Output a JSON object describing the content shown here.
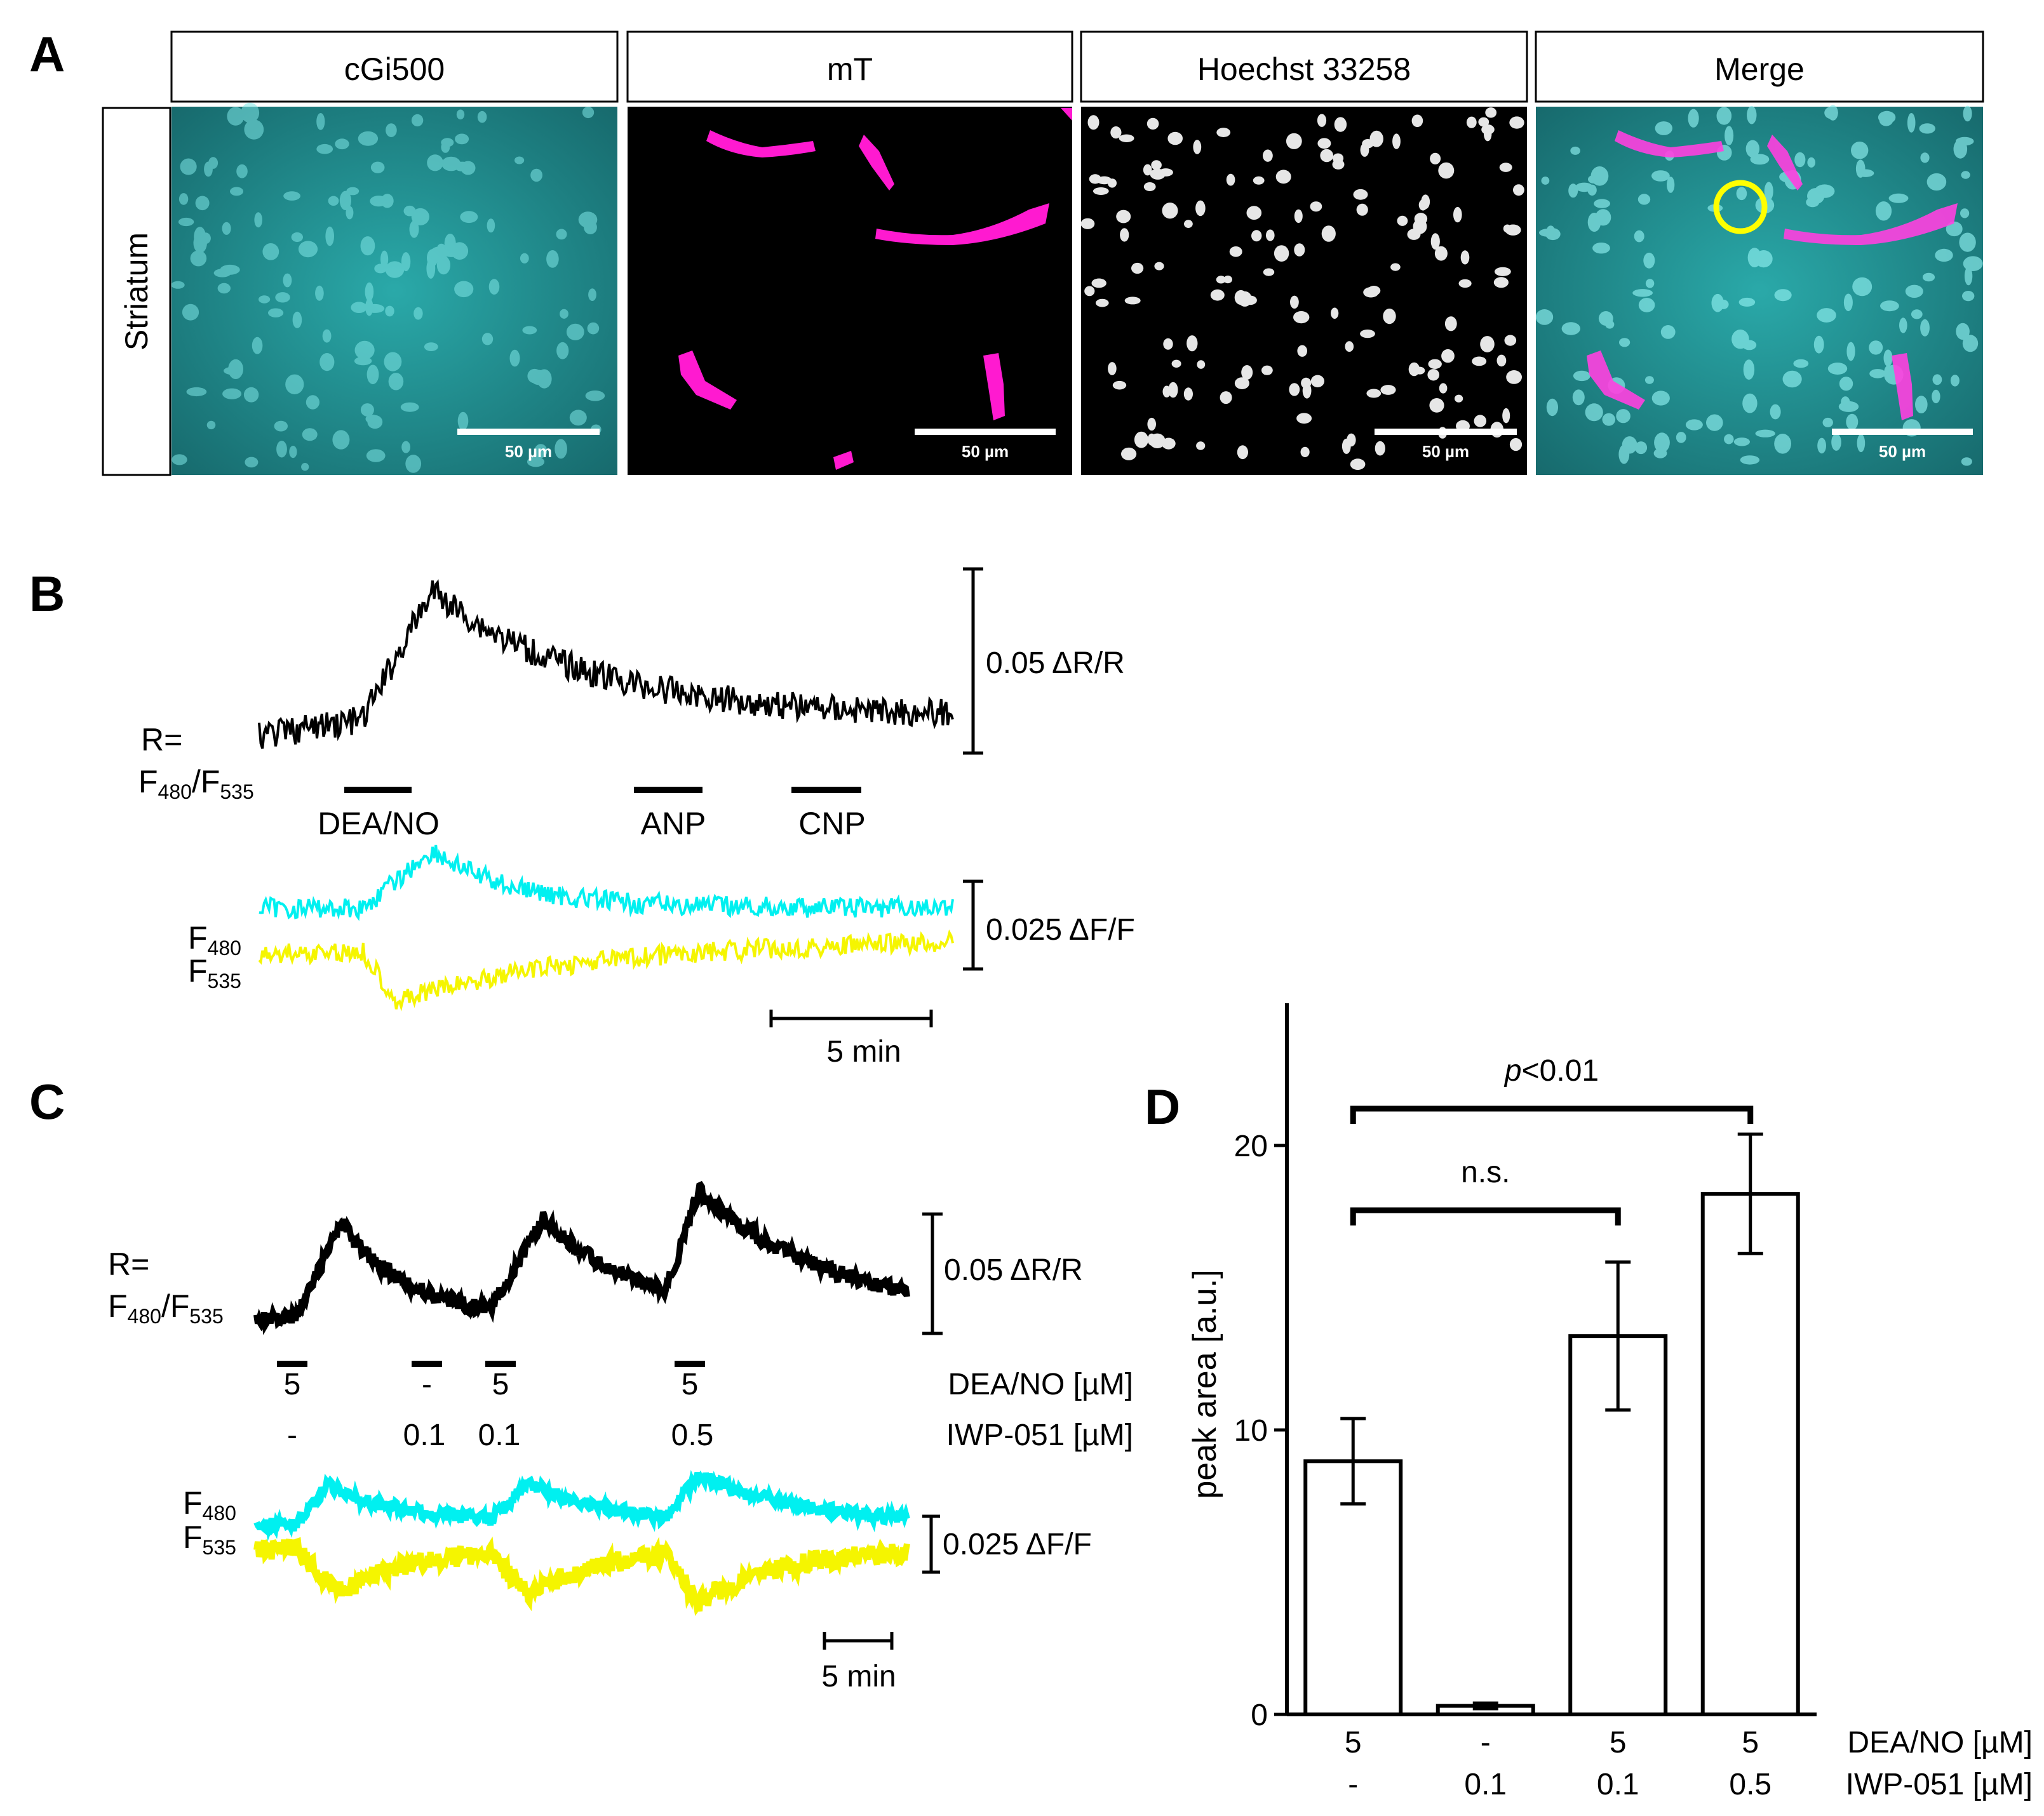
{
  "panels": {
    "A": {
      "letter": "A",
      "row_label": "Striatum",
      "columns": [
        "cGi500",
        "mT",
        "Hoechst 33258",
        "Merge"
      ],
      "scale_bar": "50 µm"
    },
    "B": {
      "letter": "B",
      "ratio_label_line1": "R=",
      "ratio_label_line2": {
        "a": "F",
        "a_sub": "480",
        "slash": "/F",
        "b_sub": "535"
      },
      "f480": {
        "main": "F",
        "sub": "480"
      },
      "f535": {
        "main": "F",
        "sub": "535"
      },
      "ratio_scale": "0.05 ΔR/R",
      "fluor_scale": "0.025 ΔF/F",
      "time_scale": "5 min",
      "stimuli": [
        "DEA/NO",
        "ANP",
        "CNP"
      ]
    },
    "C": {
      "letter": "C",
      "ratio_label_line1": "R=",
      "ratio_label_line2": {
        "a": "F",
        "a_sub": "480",
        "slash": "/F",
        "b_sub": "535"
      },
      "f480": {
        "main": "F",
        "sub": "480"
      },
      "f535": {
        "main": "F",
        "sub": "535"
      },
      "ratio_scale": "0.05 ΔR/R",
      "fluor_scale": "0.025 ΔF/F",
      "time_scale": "5 min",
      "row1_label": "DEA/NO [µM]",
      "row2_label": "IWP-051 [µM]",
      "applications": [
        {
          "dea": "5",
          "iwp": "-"
        },
        {
          "dea": "-",
          "iwp": "0.1"
        },
        {
          "dea": "5",
          "iwp": "0.1"
        },
        {
          "dea": "5",
          "iwp": "0.5"
        }
      ]
    },
    "D": {
      "letter": "D"
    }
  },
  "chart_data": {
    "type": "bar",
    "title": "",
    "xlabel": "",
    "ylabel": "peak area [a.u.]",
    "ylim": [
      0,
      25
    ],
    "yticks": [
      "0",
      "10",
      "20"
    ],
    "categories": [
      {
        "dea": "5",
        "iwp": "-"
      },
      {
        "dea": "-",
        "iwp": "0.1"
      },
      {
        "dea": "5",
        "iwp": "0.1"
      },
      {
        "dea": "5",
        "iwp": "0.5"
      }
    ],
    "category_row_labels": [
      "DEA/NO [µM]",
      "IWP-051 [µM]"
    ],
    "values": [
      8.9,
      0.3,
      13.3,
      18.3
    ],
    "errors": [
      1.5,
      0.1,
      2.6,
      2.1
    ],
    "annotations": [
      {
        "text": "n.s.",
        "from": 0,
        "to": 2
      },
      {
        "text_italic": "p",
        "text": "<0.01",
        "from": 0,
        "to": 3
      }
    ]
  },
  "colors": {
    "cyan_trace": "#00f0f0",
    "yellow_trace": "#f5f500",
    "magenta": "#ff2ad4",
    "cyan_image": "#38c8c8",
    "roi_circle": "#ffff00"
  }
}
